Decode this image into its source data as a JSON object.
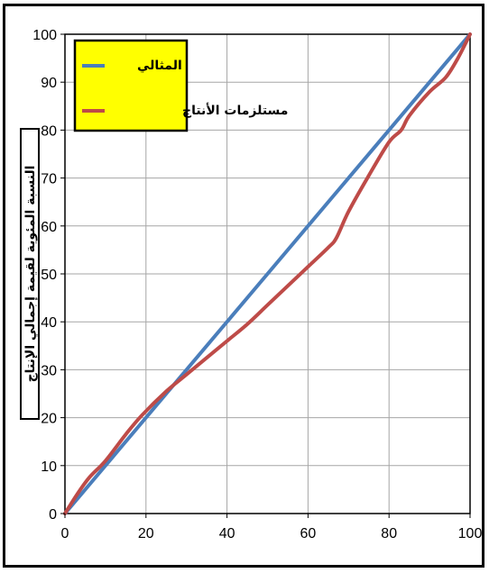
{
  "chart_data": {
    "type": "line",
    "title": "",
    "xlabel": "",
    "ylabel": "النسبة المئوية لقيمة إجمالي الإنتاج",
    "xlim": [
      0,
      100
    ],
    "ylim": [
      0,
      100
    ],
    "x_ticks": [
      "0",
      "20",
      "40",
      "60",
      "80",
      "100"
    ],
    "y_ticks": [
      "0",
      "10",
      "20",
      "30",
      "40",
      "50",
      "60",
      "70",
      "80",
      "90",
      "100"
    ],
    "grid": true,
    "legend_position": "top-left",
    "series": [
      {
        "name": "المثالي",
        "color": "#4a7ebb",
        "x": [
          0,
          100
        ],
        "y": [
          0,
          100
        ]
      },
      {
        "name": "مستلزمات الأنتاج",
        "color": "#be4b48",
        "x": [
          0,
          3,
          6,
          10,
          15,
          19,
          25,
          30,
          35,
          40,
          45,
          50,
          55,
          60,
          65,
          67,
          70,
          75,
          80,
          83,
          85,
          90,
          94,
          97,
          100
        ],
        "y": [
          0,
          4,
          7.5,
          11,
          16.5,
          20.5,
          25.5,
          29,
          32.5,
          36,
          39.5,
          43.5,
          47.5,
          51.5,
          55.5,
          57.5,
          63,
          70.5,
          77.5,
          80,
          83,
          88,
          91,
          95,
          100
        ]
      }
    ]
  }
}
